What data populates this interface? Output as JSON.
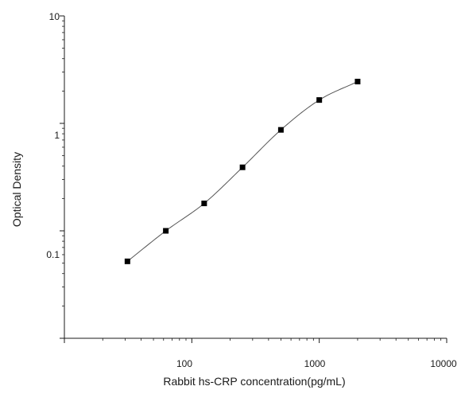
{
  "chart_data": {
    "type": "scatter",
    "title": "",
    "xlabel": "Rabbit hs-CRP concentration(pg/mL)",
    "ylabel": "Optical Density",
    "xscale": "log",
    "yscale": "log",
    "xlim": [
      10,
      10000
    ],
    "ylim": [
      0.01,
      10
    ],
    "x_tick_labels": [
      "100",
      "1000",
      "10000"
    ],
    "y_tick_labels": [
      "0.1",
      "1",
      "10"
    ],
    "grid": false,
    "legend": "none",
    "series": [
      {
        "x": [
          31.25,
          62.5,
          125,
          250,
          500,
          1000,
          2000
        ],
        "y": [
          0.052,
          0.1,
          0.18,
          0.39,
          0.87,
          1.65,
          2.45
        ],
        "marker": "square",
        "fit_curve": true
      }
    ],
    "colors": {
      "marker": "#000000",
      "curve": "#555555",
      "axis": "#1a1a1a"
    }
  }
}
